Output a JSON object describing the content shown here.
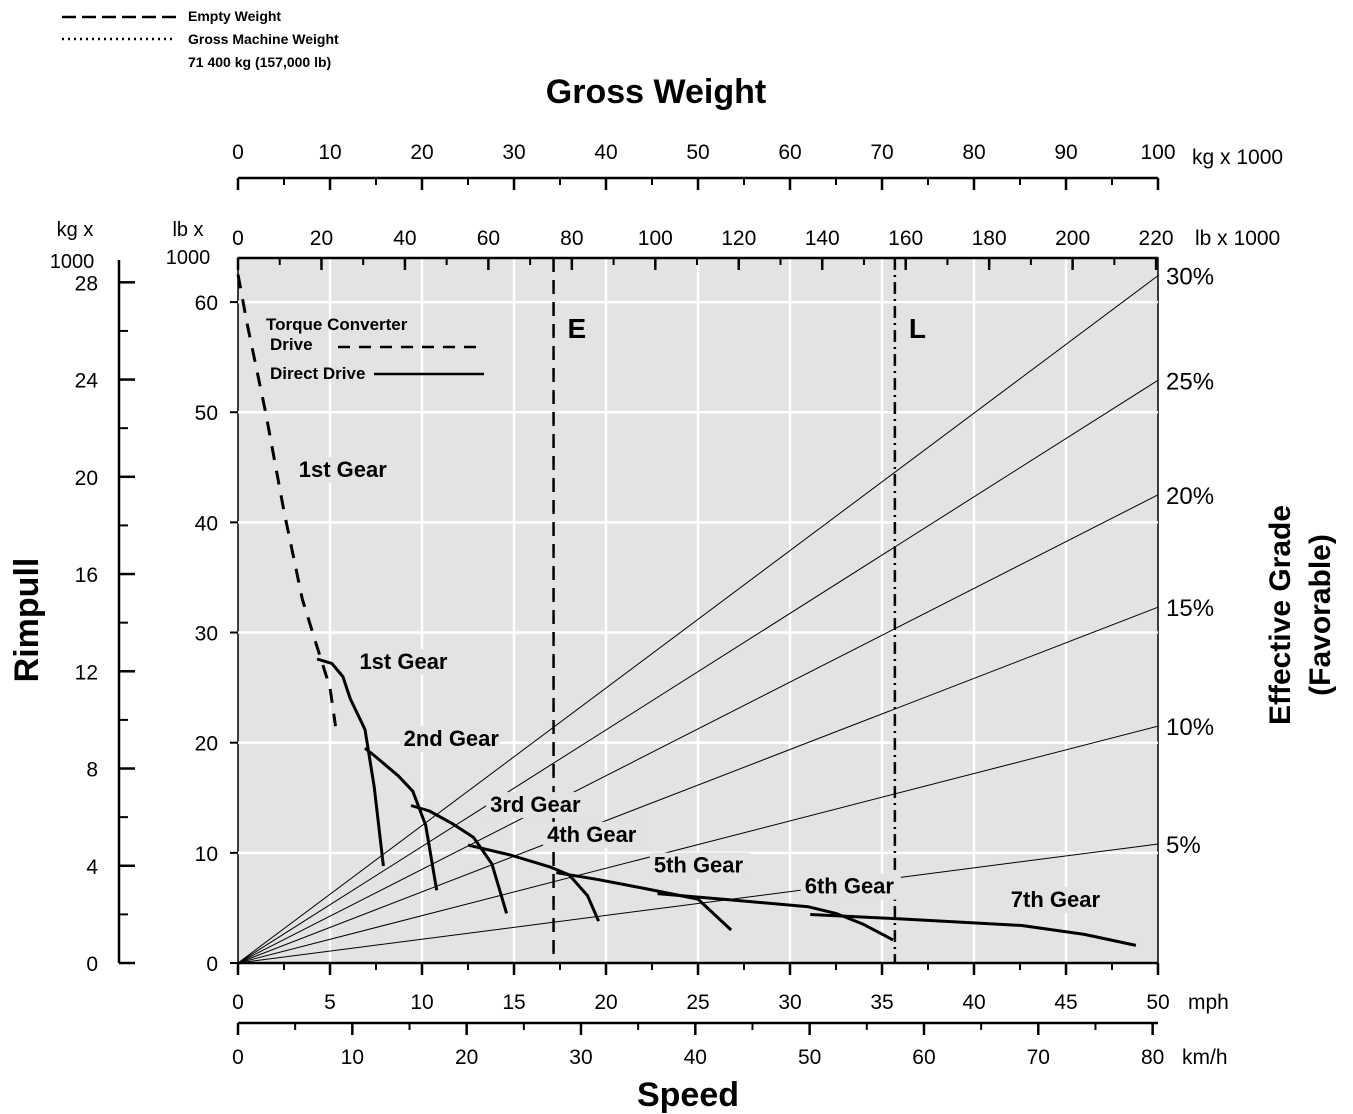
{
  "chart_data": {
    "type": "line",
    "title": "Gross Weight",
    "xlabel": "Speed",
    "ylabel": "Rimpull",
    "right_label_line1": "Effective Grade",
    "right_label_line2": "(Favorable)",
    "legend_top": [
      {
        "name": "Empty Weight",
        "style": "dashed"
      },
      {
        "name": "Gross Machine Weight",
        "style": "dotted"
      },
      {
        "name": "71 400 kg (157,000 lb)",
        "style": "none"
      }
    ],
    "legend_inner": [
      {
        "name": "Torque Converter",
        "name2": "Drive",
        "style": "dashed"
      },
      {
        "name": "Direct Drive",
        "style": "solid"
      }
    ],
    "axes": {
      "mph": {
        "label": "mph",
        "range": [
          0,
          50
        ],
        "ticks": [
          0,
          5,
          10,
          15,
          20,
          25,
          30,
          35,
          40,
          45,
          50
        ]
      },
      "kmh": {
        "label": "km/h",
        "range": [
          0,
          80.47
        ],
        "ticks": [
          0,
          10,
          20,
          30,
          40,
          50,
          60,
          70,
          80
        ]
      },
      "kg_top": {
        "label": "kg x 1000",
        "range": [
          0,
          100
        ],
        "ticks": [
          0,
          10,
          20,
          30,
          40,
          50,
          60,
          70,
          80,
          90,
          100
        ]
      },
      "lb_top": {
        "label": "lb x 1000",
        "range": [
          0,
          220.46
        ],
        "ticks": [
          0,
          20,
          40,
          60,
          80,
          100,
          120,
          140,
          160,
          180,
          200,
          220
        ]
      },
      "lb_left": {
        "label_line1": "lb x",
        "label_line2": "1000",
        "range": [
          0,
          64
        ],
        "ticks": [
          0,
          10,
          20,
          30,
          40,
          50,
          60
        ]
      },
      "kg_left": {
        "label_line1": "kg x",
        "label_line2": "1000",
        "range": [
          0,
          29
        ],
        "ticks": [
          0,
          4,
          8,
          12,
          16,
          20,
          24,
          28
        ]
      }
    },
    "weight_lines": [
      {
        "name": "E",
        "weight_kg_x1000": 34.3,
        "style": "dashed"
      },
      {
        "name": "L",
        "weight_kg_x1000": 71.4,
        "style": "dashdot"
      }
    ],
    "grade_lines": [
      {
        "label": "5%",
        "end_rimpull_lb_x1000": 10.8
      },
      {
        "label": "10%",
        "end_rimpull_lb_x1000": 21.5
      },
      {
        "label": "15%",
        "end_rimpull_lb_x1000": 32.3
      },
      {
        "label": "20%",
        "end_rimpull_lb_x1000": 42.5
      },
      {
        "label": "25%",
        "end_rimpull_lb_x1000": 52.9
      },
      {
        "label": "30%",
        "end_rimpull_lb_x1000": 62.4
      }
    ],
    "series": [
      {
        "name": "1st Gear",
        "style": "dashed",
        "label_at": [
          3.3,
          44.1
        ],
        "points": [
          [
            0,
            62.5
          ],
          [
            0.5,
            58
          ],
          [
            1.5,
            50
          ],
          [
            2.5,
            41
          ],
          [
            3.5,
            33
          ],
          [
            4.3,
            28.7
          ],
          [
            5,
            25
          ],
          [
            5.3,
            21.5
          ]
        ]
      },
      {
        "name": "1st Gear",
        "style": "solid",
        "label_at": [
          6.6,
          26.7
        ],
        "points": [
          [
            4.3,
            27.6
          ],
          [
            5.1,
            27.2
          ],
          [
            5.7,
            26
          ],
          [
            6.1,
            24
          ],
          [
            6.9,
            21.2
          ],
          [
            7.4,
            16
          ],
          [
            7.9,
            8.8
          ]
        ]
      },
      {
        "name": "2nd Gear",
        "style": "solid",
        "label_at": [
          9,
          19.7
        ],
        "points": [
          [
            6.9,
            19.5
          ],
          [
            7.5,
            18.7
          ],
          [
            8.7,
            17
          ],
          [
            9.5,
            15.6
          ],
          [
            10.2,
            12.5
          ],
          [
            10.8,
            6.6
          ]
        ]
      },
      {
        "name": "3rd Gear",
        "style": "solid",
        "label_at": [
          13.7,
          13.7
        ],
        "points": [
          [
            9.4,
            14.3
          ],
          [
            10.4,
            13.8
          ],
          [
            11.7,
            12.6
          ],
          [
            12.8,
            11.4
          ],
          [
            13.8,
            9
          ],
          [
            14.6,
            4.5
          ]
        ]
      },
      {
        "name": "4th Gear",
        "style": "solid",
        "label_at": [
          16.8,
          11
        ],
        "points": [
          [
            12.5,
            10.7
          ],
          [
            14.8,
            9.8
          ],
          [
            17,
            8.7
          ],
          [
            18,
            8
          ],
          [
            19,
            6.1
          ],
          [
            19.6,
            3.8
          ]
        ]
      },
      {
        "name": "5th Gear",
        "style": "solid",
        "label_at": [
          22.6,
          8.2
        ],
        "points": [
          [
            17.3,
            8.2
          ],
          [
            19.5,
            7.6
          ],
          [
            22,
            6.8
          ],
          [
            23.5,
            6.3
          ],
          [
            25,
            5.8
          ],
          [
            26.8,
            3
          ]
        ]
      },
      {
        "name": "6th Gear",
        "style": "solid",
        "label_at": [
          30.8,
          6.3
        ],
        "points": [
          [
            22.8,
            6.3
          ],
          [
            27,
            5.7
          ],
          [
            31,
            5.1
          ],
          [
            32.5,
            4.5
          ],
          [
            34,
            3.5
          ],
          [
            35.6,
            2.1
          ]
        ]
      },
      {
        "name": "7th Gear",
        "style": "solid",
        "label_at": [
          42,
          5.1
        ],
        "points": [
          [
            31.1,
            4.4
          ],
          [
            36,
            4
          ],
          [
            42.6,
            3.4
          ],
          [
            46,
            2.6
          ],
          [
            48.8,
            1.6
          ]
        ]
      }
    ]
  }
}
